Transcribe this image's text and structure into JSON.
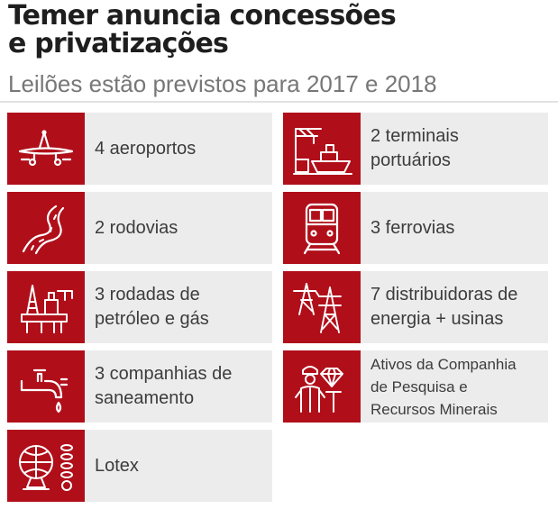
{
  "header": {
    "title_line1": "Temer anuncia concessões",
    "title_line2": "e privatizações",
    "subtitle": "Leilões estão previstos para 2017 e 2018"
  },
  "colors": {
    "accent": "#b00f1a",
    "card": "#ececec"
  },
  "items": [
    {
      "icon": "airplane-icon",
      "lines": [
        "4 aeroportos"
      ]
    },
    {
      "icon": "port-crane-ship-icon",
      "lines": [
        "2 terminais",
        "portuários"
      ]
    },
    {
      "icon": "road-icon",
      "lines": [
        "2 rodovias"
      ]
    },
    {
      "icon": "train-icon",
      "lines": [
        "3 ferrovias"
      ]
    },
    {
      "icon": "oil-platform-icon",
      "lines": [
        "3 rodadas de",
        "petróleo e gás"
      ]
    },
    {
      "icon": "power-tower-icon",
      "lines": [
        "7 distribuidoras de",
        "energia + usinas"
      ]
    },
    {
      "icon": "water-faucet-icon",
      "lines": [
        "3 companhias de",
        "saneamento"
      ]
    },
    {
      "icon": "miner-diamond-icon",
      "lines": [
        "Ativos da Companhia",
        "de Pesquisa e",
        "Recursos Minerais"
      ]
    },
    {
      "icon": "lottery-globe-icon",
      "lines": [
        "Lotex"
      ]
    }
  ]
}
